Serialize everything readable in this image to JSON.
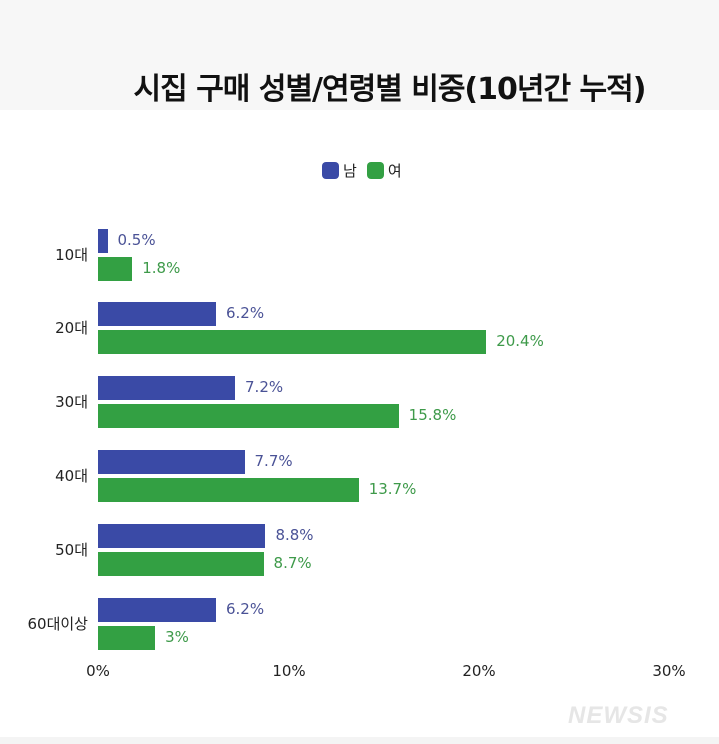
{
  "title": "시집 구매 성별/연령별 비중(10년간 누적)",
  "legend": [
    {
      "label": "남",
      "color": "#3a4aa6"
    },
    {
      "label": "여",
      "color": "#33a043"
    }
  ],
  "x_ticks": [
    "0%",
    "10%",
    "20%",
    "30%"
  ],
  "watermark": "NEWSIS",
  "groups": [
    {
      "label": "10대",
      "male": "0.5%",
      "female": "1.8%"
    },
    {
      "label": "20대",
      "male": "6.2%",
      "female": "20.4%"
    },
    {
      "label": "30대",
      "male": "7.2%",
      "female": "15.8%"
    },
    {
      "label": "40대",
      "male": "7.7%",
      "female": "13.7%"
    },
    {
      "label": "50대",
      "male": "8.8%",
      "female": "8.7%"
    },
    {
      "label": "60대이상",
      "male": "6.2%",
      "female": "3%"
    }
  ],
  "chart_data": {
    "type": "bar",
    "orientation": "horizontal",
    "title": "시집 구매 성별/연령별 비중(10년간 누적)",
    "categories": [
      "10대",
      "20대",
      "30대",
      "40대",
      "50대",
      "60대이상"
    ],
    "series": [
      {
        "name": "남",
        "color": "#3a4aa6",
        "values": [
          0.5,
          6.2,
          7.2,
          7.7,
          8.8,
          6.2
        ]
      },
      {
        "name": "여",
        "color": "#33a043",
        "values": [
          1.8,
          20.4,
          15.8,
          13.7,
          8.7,
          3
        ]
      }
    ],
    "xlabel": "",
    "ylabel": "",
    "xlim": [
      0,
      30
    ],
    "x_ticks": [
      "0%",
      "10%",
      "20%",
      "30%"
    ],
    "grid": false,
    "legend_position": "top",
    "data_labels": true,
    "unit": "%"
  }
}
